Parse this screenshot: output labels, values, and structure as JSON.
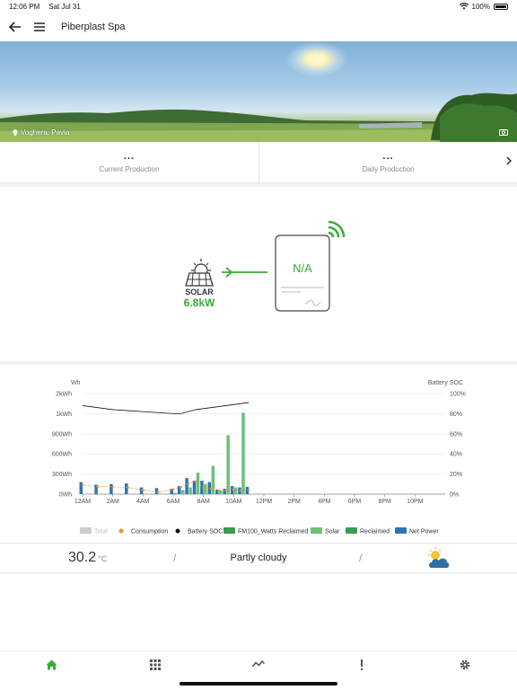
{
  "status_bar": {
    "time": "12:06 PM",
    "date": "Sat Jul 31",
    "battery": "100%"
  },
  "nav": {
    "title": "Piberplast Spa"
  },
  "hero": {
    "location": "Voghera, Pavia"
  },
  "stats": [
    {
      "value": "...",
      "label": "Current Production"
    },
    {
      "value": "...",
      "label": "Daily Production"
    }
  ],
  "diagram": {
    "solar_label": "SOLAR",
    "solar_power": "6.8kW",
    "inverter_label": "N/A"
  },
  "colors": {
    "accent": "#3aaa35",
    "net_power": "#2a75b8",
    "solar": "#6cc07a",
    "reclaimed": "#3e9b4f",
    "consumption": "#f0932b",
    "battery_soc": "#111111",
    "total": "#cccccc"
  },
  "chart_data": {
    "type": "bar",
    "left_axis_label": "Wh",
    "right_axis_label": "Battery SOC",
    "left_ticks": [
      "0Wh",
      "300Wh",
      "600Wh",
      "900Wh",
      "1kWh",
      "2kWh"
    ],
    "right_ticks": [
      "0%",
      "20%",
      "40%",
      "60%",
      "80%",
      "100%"
    ],
    "x_ticks": [
      "12AM",
      "2AM",
      "4AM",
      "6AM",
      "8AM",
      "10AM",
      "12PM",
      "2PM",
      "4PM",
      "6PM",
      "8PM",
      "10PM"
    ],
    "x": [
      0,
      1,
      2,
      3,
      4,
      5,
      6,
      6.5,
      7,
      7.5,
      8,
      8.5,
      9,
      9.5,
      10,
      10.5,
      11
    ],
    "series": [
      {
        "name": "Net Power",
        "values": [
          180,
          140,
          150,
          160,
          100,
          90,
          80,
          120,
          240,
          200,
          200,
          180,
          70,
          80,
          120,
          100,
          110
        ]
      },
      {
        "name": "Solar",
        "values": [
          0,
          0,
          0,
          0,
          0,
          0,
          20,
          60,
          100,
          320,
          150,
          420,
          60,
          880,
          100,
          1050,
          0
        ]
      },
      {
        "name": "Consumption",
        "values": [
          140,
          110,
          110,
          100,
          60,
          30,
          70,
          100,
          160,
          190,
          100,
          80,
          50,
          60,
          70,
          50,
          60
        ]
      },
      {
        "name": "Battery SOC",
        "values": [
          88,
          86,
          84,
          83,
          82,
          81,
          80,
          80,
          82,
          84,
          85,
          86,
          87,
          88,
          89,
          90,
          91
        ]
      }
    ],
    "legend": [
      "Total",
      "Consumption",
      "Battery SOC",
      "FM100_Watts Reclaimed",
      "Solar",
      "Reclaimed",
      "Net Power"
    ]
  },
  "weather": {
    "temperature": "30.2",
    "unit": "°C",
    "condition": "Partly cloudy",
    "separator": "/"
  },
  "tabs": [
    {
      "icon": "home-icon",
      "active": true
    },
    {
      "icon": "grid-icon",
      "active": false
    },
    {
      "icon": "trend-icon",
      "active": false
    },
    {
      "icon": "alert-icon",
      "active": false
    },
    {
      "icon": "gear-icon",
      "active": false
    }
  ]
}
